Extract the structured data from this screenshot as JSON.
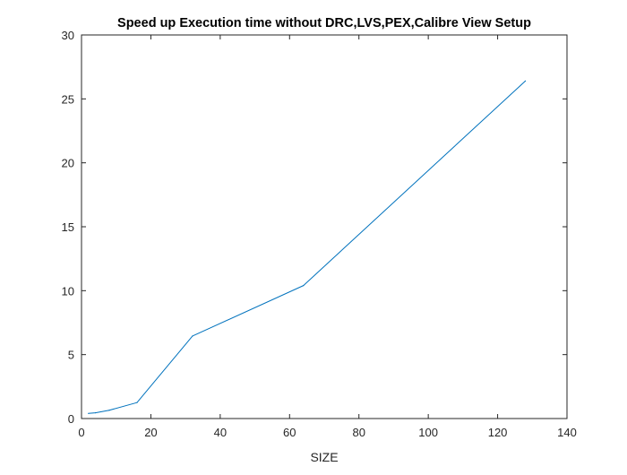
{
  "chart_data": {
    "type": "line",
    "title": "Speed up Execution time without DRC,LVS,PEX,Calibre View Setup",
    "xlabel": "SIZE",
    "ylabel": "",
    "xlim": [
      0,
      140
    ],
    "ylim": [
      0,
      30
    ],
    "xticks": [
      0,
      20,
      40,
      60,
      80,
      100,
      120,
      140
    ],
    "yticks": [
      0,
      5,
      10,
      15,
      20,
      25,
      30
    ],
    "grid": false,
    "series": [
      {
        "color": "#0072BD",
        "x": [
          2,
          4,
          8,
          16,
          32,
          64,
          128
        ],
        "y": [
          0.4,
          0.45,
          0.65,
          1.25,
          6.45,
          10.4,
          26.4
        ]
      }
    ]
  }
}
